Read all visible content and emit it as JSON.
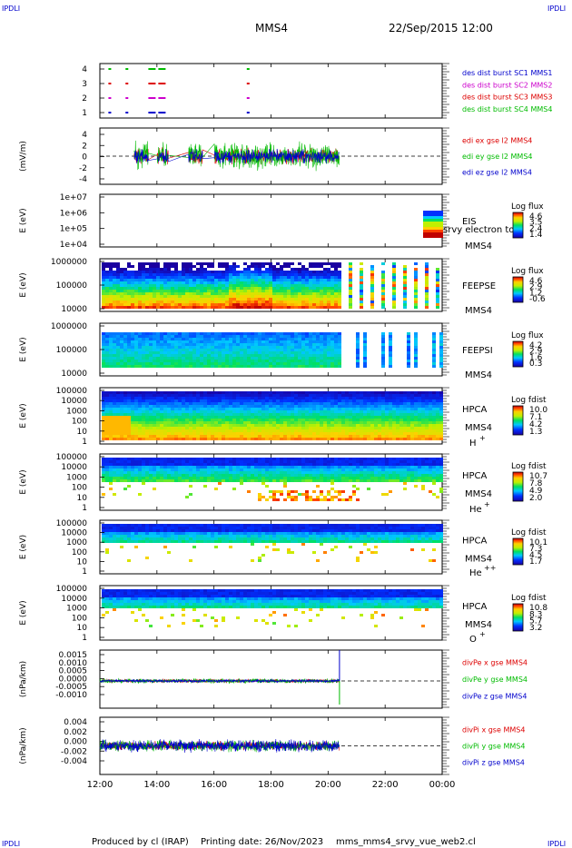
{
  "header": {
    "corner_tl": "IPDLI",
    "corner_tr": "IPDLI",
    "corner_bl": "IPDLI",
    "corner_br": "IPDLI",
    "spacecraft": "MMS4",
    "datetime": "22/Sep/2015 12:00"
  },
  "footer": {
    "produced_by": "Produced by cl (IRAP)",
    "printing_date": "Printing date: 26/Nov/2023",
    "filename": "mms_mms4_srvy_vue_web2.cl"
  },
  "colors": {
    "blue": "#0000cc",
    "green": "#00bb00",
    "red": "#dd0000",
    "magenta": "#cc00cc"
  },
  "chart_data": {
    "type": "line",
    "x_axis": {
      "ticks": [
        "12:00",
        "14:00",
        "16:00",
        "18:00",
        "20:00",
        "22:00",
        "00:00"
      ],
      "range_hours": [
        12,
        24
      ]
    },
    "panels": [
      {
        "id": "burst",
        "type": "scatter",
        "ticks": [
          "4",
          "3",
          "2",
          "1"
        ],
        "ylim": [
          0.5,
          4.5
        ],
        "legend": [
          {
            "text": "des dist burst SC1 MMS1",
            "color": "#0000cc"
          },
          {
            "text": "des dist burst SC2 MMS2",
            "color": "#cc00cc"
          },
          {
            "text": "des dist burst SC3 MMS3",
            "color": "#dd0000"
          },
          {
            "text": "des dist burst SC4 MMS4",
            "color": "#00bb00"
          }
        ],
        "series": [
          {
            "name": "des dist burst SC4 MMS4",
            "level": 4,
            "color": "#00bb00",
            "x": [
              12.3,
              12.9,
              13.7,
              14.05,
              17.15
            ]
          },
          {
            "name": "des dist burst SC3 MMS3",
            "level": 3,
            "color": "#dd0000",
            "x": [
              12.3,
              12.9,
              13.7,
              14.05,
              17.15
            ]
          },
          {
            "name": "des dist burst SC2 MMS2",
            "level": 2,
            "color": "#cc00cc",
            "x": [
              12.3,
              12.9,
              13.7,
              14.05,
              17.15
            ]
          },
          {
            "name": "des dist burst SC1 MMS1",
            "level": 1,
            "color": "#0000cc",
            "x": [
              12.3,
              12.9,
              13.7,
              14.05,
              17.15
            ]
          }
        ]
      },
      {
        "id": "edi",
        "type": "line",
        "ylabel": "(mV/m)",
        "ticks": [
          "4",
          "2",
          "0",
          "-2",
          "-4"
        ],
        "ylim": [
          -5,
          5
        ],
        "legend": [
          {
            "text": "edi ex gse l2 MMS4",
            "color": "#dd0000"
          },
          {
            "text": "edi ey gse l2 MMS4",
            "color": "#00bb00"
          },
          {
            "text": "edi ez gse l2 MMS4",
            "color": "#0000cc"
          }
        ],
        "data_range_hours": [
          13.2,
          20.4
        ],
        "amplitude": [
          1.6,
          2.8,
          1.4
        ]
      },
      {
        "id": "eis",
        "type": "heatmap",
        "ylabel": "E (eV)",
        "ticks": [
          "1e+07",
          "1e+06",
          "1e+05",
          "1e+04"
        ],
        "label": "EIS",
        "overlay_text": "srvy electron to",
        "sc": "MMS4",
        "cbar_title": "Log flux",
        "cbar_ticks": [
          "4.6",
          "3.5",
          "2.4",
          "1.4"
        ]
      },
      {
        "id": "feepse",
        "type": "heatmap",
        "ylabel": "E (eV)",
        "ticks": [
          "1000000",
          "100000",
          "10000"
        ],
        "label": "FEEPSE",
        "sc": "MMS4",
        "cbar_title": "Log flux",
        "cbar_ticks": [
          "4.6",
          "2.9",
          "1.2",
          "-0.6"
        ]
      },
      {
        "id": "feepsi",
        "type": "heatmap",
        "ylabel": "E (eV)",
        "ticks": [
          "1000000",
          "100000",
          "10000"
        ],
        "label": "FEEPSI",
        "sc": "MMS4",
        "cbar_title": "Log flux",
        "cbar_ticks": [
          "4.2",
          "2.9",
          "1.6",
          "0.3"
        ]
      },
      {
        "id": "hpca_h",
        "type": "heatmap",
        "ylabel": "E (eV)",
        "ticks": [
          "100000",
          "10000",
          "1000",
          "100",
          "10",
          "1"
        ],
        "label": "HPCA",
        "sc": "MMS4",
        "species": "H",
        "charge": "+",
        "cbar_title": "Log fdist",
        "cbar_ticks": [
          "10.0",
          "7.1",
          "4.2",
          "1.3"
        ]
      },
      {
        "id": "hpca_he1",
        "type": "heatmap",
        "ylabel": "E (eV)",
        "ticks": [
          "100000",
          "10000",
          "1000",
          "100",
          "10",
          "1"
        ],
        "label": "HPCA",
        "sc": "MMS4",
        "species": "He",
        "charge": "+",
        "cbar_title": "Log fdist",
        "cbar_ticks": [
          "10.7",
          "7.8",
          "4.9",
          "2.0"
        ]
      },
      {
        "id": "hpca_he2",
        "type": "heatmap",
        "ylabel": "E (eV)",
        "ticks": [
          "100000",
          "10000",
          "1000",
          "100",
          "10",
          "1"
        ],
        "label": "HPCA",
        "sc": "MMS4",
        "species": "He",
        "charge": "++",
        "cbar_title": "Log fdist",
        "cbar_ticks": [
          "10.1",
          "7.3",
          "4.5",
          "1.7"
        ]
      },
      {
        "id": "hpca_o",
        "type": "heatmap",
        "ylabel": "E (eV)",
        "ticks": [
          "100000",
          "10000",
          "1000",
          "100",
          "10",
          "1"
        ],
        "label": "HPCA",
        "sc": "MMS4",
        "species": "O",
        "charge": "+",
        "cbar_title": "Log fdist",
        "cbar_ticks": [
          "10.8",
          "8.3",
          "5.7",
          "3.2"
        ]
      },
      {
        "id": "divpe",
        "type": "line",
        "ylabel": "(nPa/km)",
        "ticks": [
          "0.0015",
          "0.0010",
          "0.0005",
          "0.0000",
          "-0.0005",
          "-0.0010"
        ],
        "ylim": [
          -0.0015,
          0.0017
        ],
        "legend": [
          {
            "text": "divPe x gse MMS4",
            "color": "#dd0000"
          },
          {
            "text": "divPe y gse MMS4",
            "color": "#00bb00"
          },
          {
            "text": "divPe z gse MMS4",
            "color": "#0000cc"
          }
        ],
        "data_range_hours": [
          12.0,
          20.4
        ],
        "amplitude": [
          0.00012,
          0.00015,
          0.0001
        ]
      },
      {
        "id": "divpi",
        "type": "line",
        "ylabel": "(nPa/km)",
        "ticks": [
          "0.004",
          "0.002",
          "0.000",
          "-0.002",
          "-0.004"
        ],
        "ylim": [
          -0.0048,
          0.0048
        ],
        "legend": [
          {
            "text": "divPi x gse MMS4",
            "color": "#dd0000"
          },
          {
            "text": "divPi y gse MMS4",
            "color": "#00bb00"
          },
          {
            "text": "divPi z gse MMS4",
            "color": "#0000cc"
          }
        ],
        "data_range_hours": [
          12.0,
          20.4
        ],
        "amplitude": [
          0.0009,
          0.0011,
          0.0012
        ]
      }
    ]
  }
}
